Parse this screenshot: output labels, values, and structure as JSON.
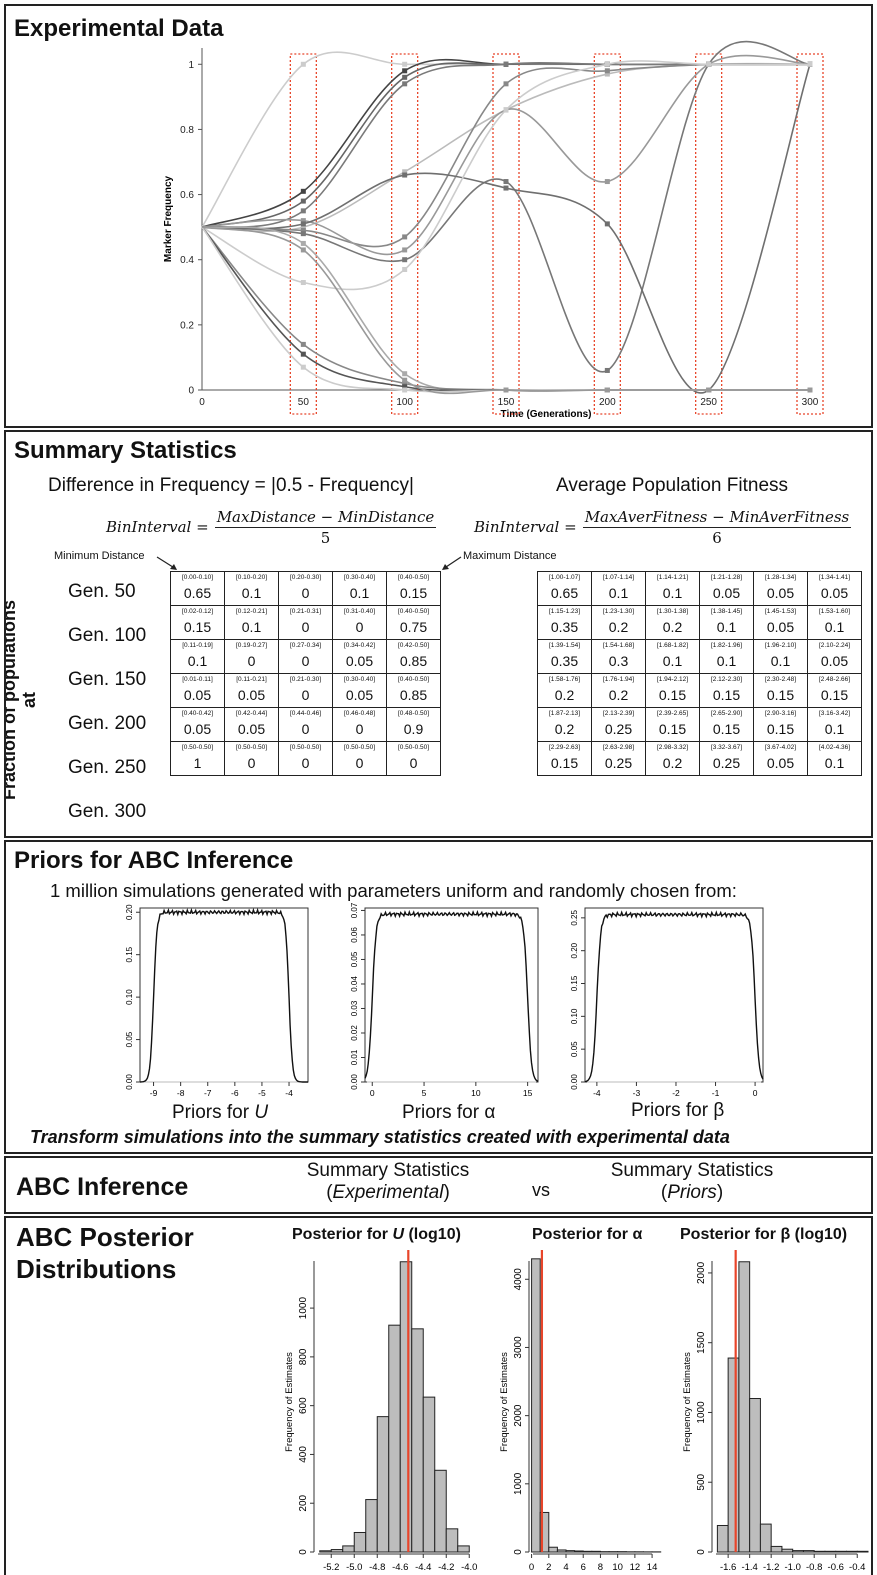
{
  "experimental": {
    "title": "Experimental Data",
    "chart_data": {
      "type": "line",
      "xlabel": "Time (Generations)",
      "ylabel": "Marker Frequency",
      "x_ticks": [
        "0",
        "50",
        "100",
        "150",
        "200",
        "250",
        "300"
      ],
      "y_ticks": [
        "0",
        "0.2",
        "0.4",
        "0.6",
        "0.8",
        "1"
      ],
      "xlim": [
        0,
        300
      ],
      "ylim": [
        0,
        1.05
      ],
      "highlighted_times": [
        50,
        100,
        150,
        200,
        250,
        300
      ],
      "x": [
        0,
        50,
        100,
        150,
        200,
        250,
        300
      ],
      "series": [
        {
          "values": [
            0.5,
            1.0,
            1.0,
            1.0,
            1.0,
            1.0,
            1.0
          ],
          "color": "#cccccc"
        },
        {
          "values": [
            0.5,
            0.61,
            0.98,
            1.0,
            1.0,
            1.0,
            1.0
          ],
          "color": "#444444"
        },
        {
          "values": [
            0.5,
            0.58,
            0.96,
            1.0,
            1.0,
            1.0,
            1.0
          ],
          "color": "#666666"
        },
        {
          "values": [
            0.5,
            0.55,
            0.94,
            1.0,
            1.0,
            1.0,
            1.0
          ],
          "color": "#7a7a7a"
        },
        {
          "values": [
            0.5,
            0.5,
            0.67,
            0.86,
            0.97,
            1.0,
            1.0
          ],
          "color": "#bbbbbb"
        },
        {
          "values": [
            0.5,
            0.49,
            0.47,
            0.94,
            0.98,
            1.0,
            1.0
          ],
          "color": "#888888"
        },
        {
          "values": [
            0.5,
            0.52,
            0.43,
            0.86,
            0.64,
            1.0,
            1.0
          ],
          "color": "#999999"
        },
        {
          "values": [
            0.5,
            0.48,
            0.4,
            0.64,
            0.06,
            1.0,
            1.0
          ],
          "color": "#777777"
        },
        {
          "values": [
            0.5,
            0.51,
            0.66,
            0.62,
            0.51,
            0.0,
            1.0
          ],
          "color": "#6f6f6f"
        },
        {
          "values": [
            0.5,
            0.33,
            0.37,
            0.86,
            1.0,
            1.0,
            1.0
          ],
          "color": "#cccccc"
        },
        {
          "values": [
            0.5,
            0.45,
            0.05,
            0.0,
            0.0,
            0.0,
            0.0
          ],
          "color": "#aaaaaa"
        },
        {
          "values": [
            0.5,
            0.14,
            0.02,
            0.0,
            0.0,
            0.0,
            0.0
          ],
          "color": "#888888"
        },
        {
          "values": [
            0.5,
            0.11,
            0.01,
            0.0,
            0.0,
            0.0,
            0.0
          ],
          "color": "#555555"
        },
        {
          "values": [
            0.5,
            0.07,
            0.0,
            0.0,
            0.0,
            0.0,
            0.0
          ],
          "color": "#cccccc"
        },
        {
          "values": [
            0.5,
            0.43,
            0.03,
            0.0,
            0.0,
            0.0,
            0.0
          ],
          "color": "#999999"
        }
      ]
    }
  },
  "summary": {
    "title": "Summary Statistics",
    "left_heading": "Difference in Frequency = |0.5 - Frequency|",
    "right_heading": "Average Population Fitness",
    "left_formula": {
      "lhs": "BinInterval =",
      "num": "MaxDistance − MinDistance",
      "den": "5"
    },
    "right_formula": {
      "lhs": "BinInterval =",
      "num": "MaxAverFitness − MinAverFitness",
      "den": "6"
    },
    "min_label": "Minimum Distance",
    "max_label": "Maximum Distance",
    "y_label": "Fraction of populations at",
    "generations": [
      "Gen. 50",
      "Gen. 100",
      "Gen. 150",
      "Gen. 200",
      "Gen. 250",
      "Gen. 300"
    ],
    "left_table": [
      {
        "ranges": [
          "[0.00-0.10]",
          "[0.10-0.20]",
          "[0.20-0.30]",
          "[0.30-0.40]",
          "[0.40-0.50]"
        ],
        "values": [
          "0.65",
          "0.1",
          "0",
          "0.1",
          "0.15"
        ]
      },
      {
        "ranges": [
          "[0.02-0.12]",
          "[0.12-0.21]",
          "[0.21-0.31]",
          "[0.31-0.40]",
          "[0.40-0.50]"
        ],
        "values": [
          "0.15",
          "0.1",
          "0",
          "0",
          "0.75"
        ]
      },
      {
        "ranges": [
          "[0.11-0.19]",
          "[0.19-0.27]",
          "[0.27-0.34]",
          "[0.34-0.42]",
          "[0.42-0.50]"
        ],
        "values": [
          "0.1",
          "0",
          "0",
          "0.05",
          "0.85"
        ]
      },
      {
        "ranges": [
          "[0.01-0.11]",
          "[0.11-0.21]",
          "[0.21-0.30]",
          "[0.30-0.40]",
          "[0.40-0.50]"
        ],
        "values": [
          "0.05",
          "0.05",
          "0",
          "0.05",
          "0.85"
        ]
      },
      {
        "ranges": [
          "[0.40-0.42]",
          "[0.42-0.44]",
          "[0.44-0.46]",
          "[0.46-0.48]",
          "[0.48-0.50]"
        ],
        "values": [
          "0.05",
          "0.05",
          "0",
          "0",
          "0.9"
        ]
      },
      {
        "ranges": [
          "[0.50-0.50]",
          "[0.50-0.50]",
          "[0.50-0.50]",
          "[0.50-0.50]",
          "[0.50-0.50]"
        ],
        "values": [
          "1",
          "0",
          "0",
          "0",
          "0"
        ]
      }
    ],
    "right_table": [
      {
        "ranges": [
          "[1.00-1.07]",
          "[1.07-1.14]",
          "[1.14-1.21]",
          "[1.21-1.28]",
          "[1.28-1.34]",
          "[1.34-1.41]"
        ],
        "values": [
          "0.65",
          "0.1",
          "0.1",
          "0.05",
          "0.05",
          "0.05"
        ]
      },
      {
        "ranges": [
          "[1.15-1.23]",
          "[1.23-1.30]",
          "[1.30-1.38]",
          "[1.38-1.45]",
          "[1.45-1.53]",
          "[1.53-1.60]"
        ],
        "values": [
          "0.35",
          "0.2",
          "0.2",
          "0.1",
          "0.05",
          "0.1"
        ]
      },
      {
        "ranges": [
          "[1.39-1.54]",
          "[1.54-1.68]",
          "[1.68-1.82]",
          "[1.82-1.96]",
          "[1.96-2.10]",
          "[2.10-2.24]"
        ],
        "values": [
          "0.35",
          "0.3",
          "0.1",
          "0.1",
          "0.1",
          "0.05"
        ]
      },
      {
        "ranges": [
          "[1.58-1.76]",
          "[1.76-1.94]",
          "[1.94-2.12]",
          "[2.12-2.30]",
          "[2.30-2.48]",
          "[2.48-2.66]"
        ],
        "values": [
          "0.2",
          "0.2",
          "0.15",
          "0.15",
          "0.15",
          "0.15"
        ]
      },
      {
        "ranges": [
          "[1.87-2.13]",
          "[2.13-2.39]",
          "[2.39-2.65]",
          "[2.65-2.90]",
          "[2.90-3.16]",
          "[3.16-3.42]"
        ],
        "values": [
          "0.2",
          "0.25",
          "0.15",
          "0.15",
          "0.15",
          "0.1"
        ]
      },
      {
        "ranges": [
          "[2.29-2.63]",
          "[2.63-2.98]",
          "[2.98-3.32]",
          "[3.32-3.67]",
          "[3.67-4.02]",
          "[4.02-4.36]"
        ],
        "values": [
          "0.15",
          "0.25",
          "0.2",
          "0.25",
          "0.05",
          "0.1"
        ]
      }
    ]
  },
  "priors": {
    "title": "Priors for ABC Inference",
    "subtitle": "1 million simulations generated with parameters uniform and randomly chosen from:",
    "footer": "Transform simulations into the summary statistics created with experimental data",
    "chart_data": [
      {
        "type": "line",
        "label_prefix": "Priors for ",
        "label_param": "U",
        "param_italic": true,
        "xlim": [
          -9.5,
          -3.3
        ],
        "ylim": [
          0,
          0.205
        ],
        "plateau": 0.2,
        "support": [
          -9,
          -4
        ],
        "x_ticks": [
          "-9",
          "-8",
          "-7",
          "-6",
          "-5",
          "-4"
        ],
        "y_ticks": [
          "0.00",
          "0.05",
          "0.10",
          "0.15",
          "0.20"
        ]
      },
      {
        "type": "line",
        "label_prefix": "Priors for ",
        "label_param": "α",
        "param_italic": false,
        "xlim": [
          -0.7,
          16
        ],
        "ylim": [
          0,
          0.071
        ],
        "plateau": 0.0685,
        "support": [
          0,
          15
        ],
        "x_ticks": [
          "0",
          "5",
          "10",
          "15"
        ],
        "y_ticks": [
          "0.00",
          "0.01",
          "0.02",
          "0.03",
          "0.04",
          "0.05",
          "0.06",
          "0.07"
        ]
      },
      {
        "type": "line",
        "label_prefix": "Priors for ",
        "label_param": "β",
        "param_italic": false,
        "xlim": [
          -4.3,
          0.2
        ],
        "ylim": [
          0,
          0.265
        ],
        "plateau": 0.255,
        "support": [
          -4,
          0
        ],
        "x_ticks": [
          "-4",
          "-3",
          "-2",
          "-1",
          "0"
        ],
        "y_ticks": [
          "0.00",
          "0.05",
          "0.10",
          "0.15",
          "0.20",
          "0.25"
        ]
      }
    ]
  },
  "inference": {
    "title": "ABC Inference",
    "left_line1": "Summary Statistics",
    "left_line2": "Experimental",
    "vs": "vs",
    "right_line1": "Summary Statistics",
    "right_line2": "Priors"
  },
  "posterior": {
    "title_line1": "ABC Posterior",
    "title_line2": "Distributions",
    "accent_color": "#e8452a",
    "chart_data": [
      {
        "type": "bar",
        "title_prefix": "Posterior for ",
        "param": "U",
        "param_italic": true,
        "title_suffix": " (log10)",
        "ylabel": "Frequency of Estimates",
        "bin_edges": [
          -5.3,
          -5.2,
          -5.1,
          -5.0,
          -4.9,
          -4.8,
          -4.7,
          -4.6,
          -4.5,
          -4.4,
          -4.3,
          -4.2,
          -4.1,
          -4.0
        ],
        "counts": [
          5,
          10,
          25,
          80,
          215,
          555,
          930,
          1190,
          915,
          635,
          335,
          95,
          25
        ],
        "marker": -4.53,
        "xlim": [
          -5.35,
          -3.95
        ],
        "ylim": [
          0,
          1230
        ],
        "x_ticks": [
          "-5.2",
          "-5.0",
          "-4.8",
          "-4.6",
          "-4.4",
          "-4.2",
          "-4.0"
        ],
        "y_ticks": [
          "0",
          "200",
          "400",
          "600",
          "800",
          "1000"
        ]
      },
      {
        "type": "bar",
        "title_prefix": "Posterior for ",
        "param": "α",
        "param_italic": false,
        "title_suffix": "",
        "ylabel": "Frequency of Estimates",
        "bin_edges": [
          0,
          1,
          2,
          3,
          4,
          5,
          6,
          7,
          8,
          9,
          10,
          11,
          12,
          13,
          14,
          15
        ],
        "counts": [
          4300,
          580,
          70,
          30,
          20,
          15,
          10,
          10,
          5,
          5,
          5,
          3,
          3,
          2,
          2
        ],
        "marker": 1.2,
        "xlim": [
          -0.3,
          15.5
        ],
        "ylim": [
          0,
          4400
        ],
        "x_ticks": [
          "0",
          "2",
          "4",
          "6",
          "8",
          "10",
          "12",
          "14"
        ],
        "y_ticks": [
          "0",
          "1000",
          "2000",
          "3000",
          "4000"
        ]
      },
      {
        "type": "bar",
        "title_prefix": "Posterior for ",
        "param": "β",
        "param_italic": false,
        "title_suffix": " (log10)",
        "ylabel": "Frequency of Estimates",
        "bin_edges": [
          -1.7,
          -1.6,
          -1.5,
          -1.4,
          -1.3,
          -1.2,
          -1.1,
          -1.0,
          -0.9,
          -0.8,
          -0.7,
          -0.6,
          -0.5,
          -0.4,
          -0.3
        ],
        "counts": [
          190,
          1390,
          2080,
          1100,
          200,
          40,
          20,
          10,
          10,
          5,
          5,
          5,
          5,
          5
        ],
        "marker": -1.53,
        "xlim": [
          -1.75,
          -0.3
        ],
        "ylim": [
          0,
          2150
        ],
        "x_ticks": [
          "-1.6",
          "-1.4",
          "-1.2",
          "-1.0",
          "-0.8",
          "-0.6",
          "-0.4"
        ],
        "y_ticks": [
          "0",
          "500",
          "1000",
          "1500",
          "2000"
        ]
      }
    ]
  }
}
